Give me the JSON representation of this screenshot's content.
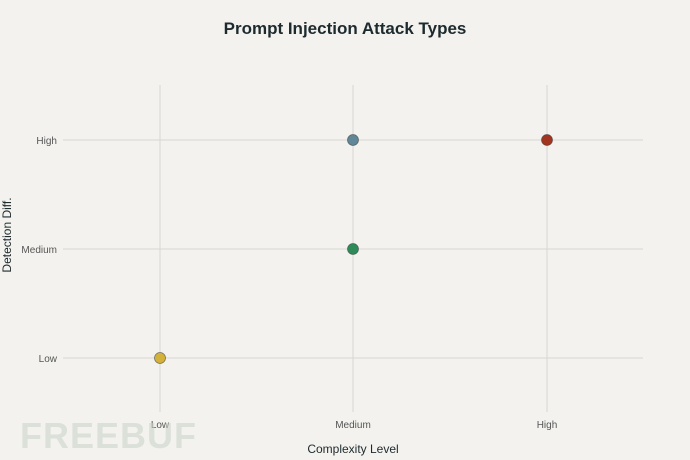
{
  "chart_data": {
    "type": "scatter",
    "title": "Prompt Injection Attack Types",
    "xlabel": "Complexity Level",
    "ylabel": "Detection Diff.",
    "x_categories": [
      "Low",
      "Medium",
      "High"
    ],
    "y_categories": [
      "Low",
      "Medium",
      "High"
    ],
    "grid": true,
    "points": [
      {
        "x": "Low",
        "y": "Low",
        "color": "#d4b13a"
      },
      {
        "x": "Medium",
        "y": "Medium",
        "color": "#2e8b57"
      },
      {
        "x": "Medium",
        "y": "High",
        "color": "#5f8797"
      },
      {
        "x": "High",
        "y": "High",
        "color": "#a3341f"
      }
    ]
  },
  "watermark": "FREEBUF"
}
